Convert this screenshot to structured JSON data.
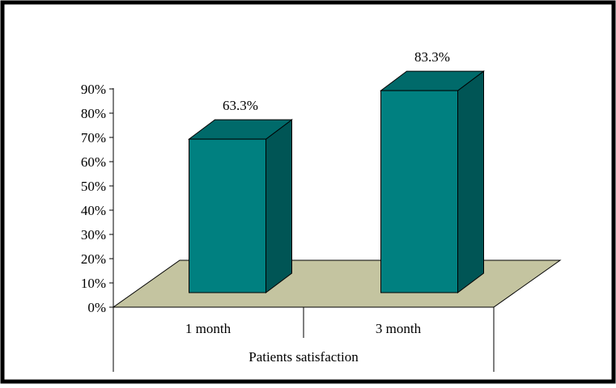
{
  "chart_data": {
    "type": "bar",
    "style": "3d-column",
    "categories": [
      "1 month",
      "3 month"
    ],
    "series": [
      {
        "values": [
          63.3,
          83.3
        ]
      }
    ],
    "data_labels": [
      "63.3%",
      "83.3%"
    ],
    "group_label": "Patients satisfaction",
    "ylim": [
      0,
      90
    ],
    "y_ticks": [
      0,
      10,
      20,
      30,
      40,
      50,
      60,
      70,
      80,
      90
    ],
    "y_tick_labels": [
      "0%",
      "10%",
      "20%",
      "30%",
      "40%",
      "50%",
      "60%",
      "70%",
      "80%",
      "90%"
    ],
    "grid": false,
    "legend": "none",
    "colors": {
      "bar_front": "#008080",
      "bar_top": "#006a6a",
      "bar_side": "#005555",
      "floor": "#c4c4a0",
      "frame": "#000000"
    }
  }
}
